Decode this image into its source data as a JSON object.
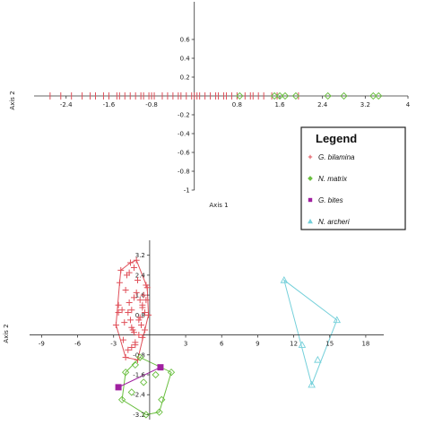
{
  "chart_data": [
    {
      "type": "scatter",
      "xlabel": "Axis 1",
      "ylabel": "Axis 2",
      "xlim": [
        -3.0,
        4.0
      ],
      "ylim": [
        -1.0,
        1.0
      ],
      "x_ticks": [
        "-2.4",
        "-1.6",
        "-0.8",
        "0.8",
        "1.6",
        "2.4",
        "3.2",
        "4"
      ],
      "y_ticks": [
        "0.6",
        "0.4",
        "0.2",
        "-0.2",
        "-0.4",
        "-0.6",
        "-0.8",
        "-1"
      ],
      "series": [
        {
          "name": "G. bilamina",
          "color": "#e0505a",
          "marker": "plus",
          "x": [
            -2.7,
            -2.5,
            -2.3,
            -2.1,
            -1.95,
            -1.85,
            -1.7,
            -1.6,
            -1.45,
            -1.4,
            -1.3,
            -1.2,
            -1.1,
            -1.0,
            -0.95,
            -0.85,
            -0.8,
            -0.75,
            -0.6,
            -0.5,
            -0.4,
            -0.3,
            -0.25,
            -0.15,
            -0.05,
            0.0,
            0.05,
            0.1,
            0.2,
            0.3,
            0.4,
            0.45,
            0.55,
            0.6,
            0.7,
            0.8,
            0.95,
            1.05,
            1.1,
            1.2,
            1.3,
            1.45,
            1.55,
            1.95
          ],
          "y": [
            0,
            0,
            0,
            0,
            0,
            0,
            0,
            0,
            0,
            0,
            0,
            0,
            0,
            0,
            0,
            0,
            0,
            0,
            0,
            0,
            0,
            0,
            0,
            0,
            0,
            0,
            0,
            0,
            0,
            0,
            0,
            0,
            0,
            0,
            0,
            0,
            0,
            0,
            0,
            0,
            0,
            0,
            0,
            0
          ]
        },
        {
          "name": "N. matrix",
          "color": "#6abf40",
          "marker": "diamond",
          "x": [
            0.85,
            1.5,
            1.6,
            1.7,
            1.9,
            2.5,
            2.8,
            3.35,
            3.45
          ],
          "y": [
            0,
            0,
            0,
            0,
            0,
            0,
            0,
            0,
            0
          ]
        }
      ]
    },
    {
      "type": "scatter",
      "xlabel": "",
      "ylabel": "Axis 2",
      "xlim": [
        -10.0,
        19.5
      ],
      "ylim": [
        -3.4,
        3.8
      ],
      "x_ticks": [
        "-9",
        "-6",
        "-3",
        "3",
        "6",
        "9",
        "12",
        "15",
        "18"
      ],
      "y_ticks": [
        "3.2",
        "2.4",
        "1.6",
        "0.8",
        "-0.8",
        "-1.6",
        "-2.4",
        "-3.2"
      ],
      "series": [
        {
          "name": "G. bilamina",
          "color": "#e0505a",
          "marker": "plus",
          "x": [
            -2.8,
            -2.6,
            -2.4,
            -2.2,
            -2.0,
            -1.8,
            -1.6,
            -1.5,
            -1.3,
            -1.2,
            -1.0,
            -0.8,
            -0.6,
            -0.4,
            -0.2,
            -2.5,
            -2.1,
            -1.7,
            -1.3,
            -0.9,
            -0.5,
            -0.1,
            -2.3,
            -1.9,
            -1.5,
            -1.1,
            -0.7,
            -0.3,
            -2.0,
            -1.6,
            -1.2,
            -0.8,
            -0.4,
            -1.8,
            -1.4,
            -1.0,
            -0.6,
            -1.7,
            -1.3,
            -0.9,
            -2.6,
            -1.1,
            -0.6,
            -1.5,
            -0.3
          ],
          "y": [
            0.4,
            1.2,
            2.6,
            -0.2,
            1.8,
            0.9,
            2.9,
            0.3,
            1.5,
            -0.4,
            2.2,
            0.7,
            1.1,
            0.2,
            1.9,
            2.1,
            0.5,
            1.3,
            2.7,
            0.0,
            1.6,
            0.8,
            1.0,
            2.4,
            -0.5,
            1.7,
            0.4,
            2.0,
            -0.9,
            0.6,
            -0.3,
            1.4,
            0.9,
            -0.6,
            0.2,
            -1.0,
            1.2,
            2.5,
            0.1,
            0.6,
            0.9,
            3.0,
            -0.1,
            1.0,
            1.4
          ]
        },
        {
          "name": "N. matrix",
          "color": "#6abf40",
          "marker": "diamond",
          "x": [
            -2.0,
            -1.2,
            -0.8,
            -0.5,
            0.5,
            -1.5,
            1.0,
            0.8,
            -0.3,
            -2.3,
            1.8
          ],
          "y": [
            -1.5,
            -1.2,
            -0.9,
            -1.9,
            -1.6,
            -2.3,
            -2.6,
            -3.1,
            -3.2,
            -2.6,
            -1.5
          ]
        },
        {
          "name": "G. bites",
          "color": "#a020a0",
          "marker": "square",
          "x": [
            -2.6,
            0.9
          ],
          "y": [
            -2.1,
            -1.3
          ]
        },
        {
          "name": "N. archeri",
          "color": "#74d0da",
          "marker": "triangle",
          "x": [
            11.2,
            15.6,
            13.5,
            12.7,
            14.0
          ],
          "y": [
            2.2,
            0.6,
            -2.0,
            -0.4,
            -1.0
          ]
        }
      ]
    }
  ],
  "legend": {
    "title": "Legend",
    "entries": [
      {
        "label": "G. bilamina",
        "color": "#e0505a",
        "marker": "plus"
      },
      {
        "label": "N. matrix",
        "color": "#6abf40",
        "marker": "diamond"
      },
      {
        "label": "G. bites",
        "color": "#a020a0",
        "marker": "square"
      },
      {
        "label": "N. archeri",
        "color": "#74d0da",
        "marker": "triangle"
      }
    ]
  }
}
